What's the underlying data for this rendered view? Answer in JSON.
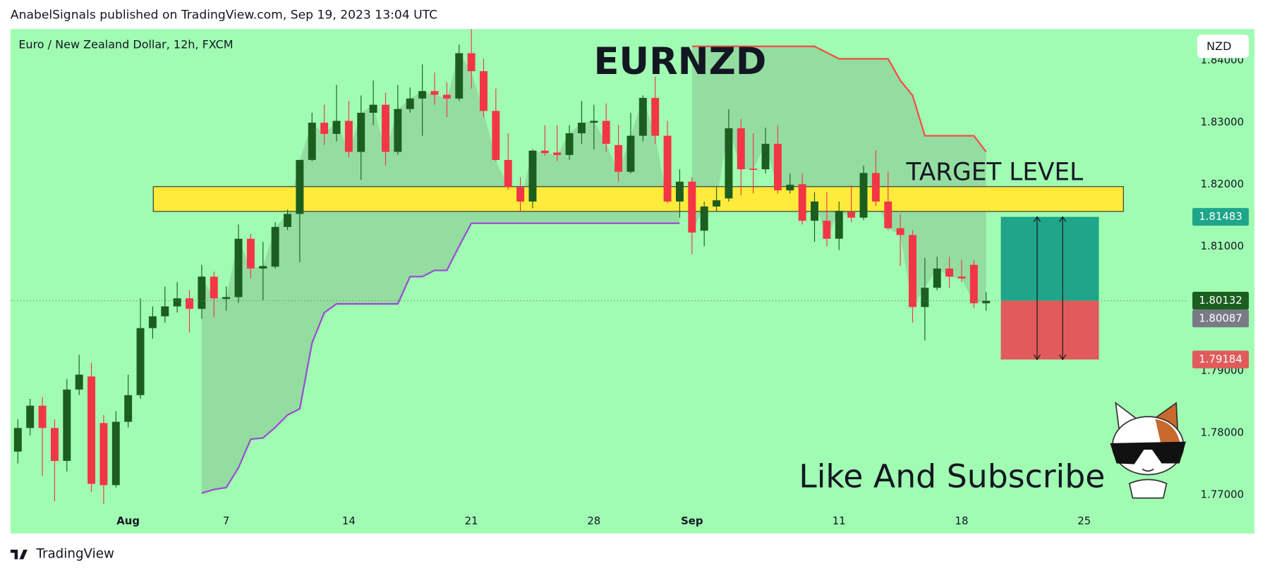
{
  "chart_data": {
    "type": "candlestick",
    "header": "AnabelSignals published on TradingView.com, Sep 19, 2023 13:04 UTC",
    "title": "EURNZD",
    "subtitle": "Euro / New Zealand Dollar, 12h, FXCM",
    "currency": "NZD",
    "brand": "TradingView",
    "annotations": [
      "TARGET LEVEL",
      "Like And Subscribe"
    ],
    "up_color": "#1b5e20",
    "down_color": "#f23645",
    "background": "#a0fcb2",
    "open": [
      1.777,
      1.7808,
      1.7844,
      1.7808,
      1.7755,
      1.787,
      1.7891,
      1.7816,
      1.7716,
      1.7818,
      1.7861,
      1.7969,
      1.7988,
      1.8004,
      1.8017,
      1.8,
      1.8052,
      1.8016,
      1.8019,
      1.8113,
      1.8065,
      1.8068,
      1.8132,
      1.8153,
      1.824,
      1.83,
      1.8282,
      1.8303,
      1.8253,
      1.8316,
      1.8329,
      1.8253,
      1.8322,
      1.8339,
      1.8351,
      1.8345,
      1.8339,
      1.8412,
      1.8383,
      1.8319,
      1.824,
      1.8196,
      1.8173,
      1.8255,
      1.8252,
      1.8248,
      1.8283,
      1.83,
      1.8303,
      1.8264,
      1.8221,
      1.8279,
      1.834,
      1.8279,
      1.8173,
      1.8205,
      1.8126,
      1.8165,
      1.8178,
      1.8291,
      1.8226,
      1.8225,
      1.8266,
      1.8191,
      1.8201,
      1.8142,
      1.8142,
      1.8113,
      1.8156,
      1.8147,
      1.8219,
      1.8173,
      1.813,
      1.8119,
      1.8003,
      1.8034,
      1.8065,
      1.8052,
      1.8071,
      1.8009
    ],
    "high": [
      1.7822,
      1.7855,
      1.7858,
      1.7822,
      1.7887,
      1.7926,
      1.7913,
      1.7829,
      1.7835,
      1.7894,
      1.8017,
      1.8004,
      1.8036,
      1.8043,
      1.803,
      1.8071,
      1.806,
      1.8036,
      1.8136,
      1.8121,
      1.8108,
      1.814,
      1.816,
      1.824,
      1.8316,
      1.8329,
      1.8361,
      1.8335,
      1.8344,
      1.8368,
      1.8348,
      1.8361,
      1.8357,
      1.8394,
      1.8381,
      1.8365,
      1.8426,
      1.8451,
      1.8403,
      1.8355,
      1.8283,
      1.8212,
      1.8257,
      1.8296,
      1.8296,
      1.8296,
      1.8335,
      1.8329,
      1.8331,
      1.8296,
      1.8316,
      1.8344,
      1.8374,
      1.8303,
      1.8225,
      1.8212,
      1.8173,
      1.8196,
      1.8322,
      1.8306,
      1.8283,
      1.8292,
      1.8296,
      1.8218,
      1.8218,
      1.8188,
      1.8188,
      1.8173,
      1.8199,
      1.8231,
      1.8256,
      1.8221,
      1.8153,
      1.8127,
      1.8082,
      1.8084,
      1.8084,
      1.8079,
      1.8079,
      1.8027
    ],
    "low": [
      1.7751,
      1.7796,
      1.7731,
      1.769,
      1.7738,
      1.7861,
      1.7705,
      1.7686,
      1.7712,
      1.7809,
      1.7855,
      1.7952,
      1.7978,
      1.7994,
      1.7962,
      1.7984,
      1.7987,
      1.7997,
      1.801,
      1.8049,
      1.8014,
      1.8065,
      1.8127,
      1.8075,
      1.8238,
      1.8264,
      1.827,
      1.8244,
      1.8208,
      1.8296,
      1.8231,
      1.8248,
      1.8316,
      1.8279,
      1.8329,
      1.8309,
      1.8335,
      1.8355,
      1.8309,
      1.8238,
      1.8192,
      1.8157,
      1.8162,
      1.8247,
      1.8238,
      1.824,
      1.8266,
      1.8257,
      1.8253,
      1.8205,
      1.8218,
      1.827,
      1.8266,
      1.817,
      1.8147,
      1.8088,
      1.8101,
      1.8157,
      1.8173,
      1.8183,
      1.8186,
      1.8218,
      1.8186,
      1.8186,
      1.8136,
      1.8108,
      1.8101,
      1.8095,
      1.814,
      1.8143,
      1.8166,
      1.8127,
      1.8069,
      1.7978,
      1.7949,
      1.803,
      1.8034,
      1.8043,
      1.8001,
      1.7997
    ],
    "close": [
      1.7808,
      1.7844,
      1.7808,
      1.7755,
      1.787,
      1.7894,
      1.7718,
      1.7716,
      1.7818,
      1.7861,
      1.7969,
      1.7988,
      1.8004,
      1.8017,
      1.8,
      1.8052,
      1.8017,
      1.8019,
      1.8113,
      1.8065,
      1.8069,
      1.8132,
      1.8153,
      1.824,
      1.83,
      1.8282,
      1.8303,
      1.8253,
      1.8316,
      1.8329,
      1.8253,
      1.8322,
      1.8339,
      1.8351,
      1.8345,
      1.8339,
      1.8412,
      1.8383,
      1.8319,
      1.824,
      1.8196,
      1.8173,
      1.8255,
      1.8251,
      1.8248,
      1.8283,
      1.83,
      1.8303,
      1.8266,
      1.8221,
      1.8279,
      1.834,
      1.8279,
      1.8173,
      1.8205,
      1.8123,
      1.8165,
      1.8175,
      1.8291,
      1.8225,
      1.8225,
      1.8266,
      1.8191,
      1.82,
      1.8142,
      1.8173,
      1.8113,
      1.8158,
      1.8147,
      1.8219,
      1.8173,
      1.813,
      1.8119,
      1.8003,
      1.8034,
      1.8065,
      1.8052,
      1.8049,
      1.8009,
      1.8013
    ],
    "indicators": [
      {
        "color": "#9b4fd1",
        "x": [
          15,
          16,
          17,
          18,
          19,
          20,
          21,
          22,
          23,
          24,
          25,
          26,
          27,
          28,
          29,
          30,
          31,
          32,
          33,
          34,
          35,
          36,
          37,
          38,
          39,
          40,
          41,
          42,
          43,
          44,
          45,
          46,
          47,
          48,
          49,
          50,
          51,
          52,
          53,
          54
        ],
        "values": [
          1.7703,
          1.7709,
          1.7712,
          1.7744,
          1.779,
          1.7792,
          1.7809,
          1.7829,
          1.7839,
          1.7945,
          1.7994,
          1.8008,
          1.8008,
          1.8008,
          1.8008,
          1.8008,
          1.8008,
          1.8052,
          1.8052,
          1.8062,
          1.8062,
          1.8101,
          1.8138,
          1.8138,
          1.8138,
          1.8138,
          1.8138,
          1.8138,
          1.8138,
          1.8138,
          1.8138,
          1.8138,
          1.8138,
          1.8138,
          1.8138,
          1.8138,
          1.8138,
          1.8138,
          1.8138,
          1.8138
        ]
      },
      {
        "color": "#f0504a",
        "x": [
          55,
          56,
          57,
          58,
          59,
          60,
          61,
          62,
          63,
          64,
          65,
          66,
          67,
          68,
          69,
          70,
          71,
          72,
          73,
          74,
          75,
          76,
          77,
          78,
          79
        ],
        "values": [
          1.8423,
          1.8423,
          1.8423,
          1.8423,
          1.8423,
          1.8423,
          1.8423,
          1.8423,
          1.8423,
          1.8423,
          1.8423,
          1.8413,
          1.8403,
          1.8403,
          1.8403,
          1.8403,
          1.8403,
          1.8368,
          1.8344,
          1.8279,
          1.8279,
          1.8279,
          1.8279,
          1.8279,
          1.8253
        ]
      }
    ],
    "zone": {
      "x": [
        11.05,
        90.2
      ],
      "y": [
        1.8157,
        1.8197
      ],
      "color": "#ffeb3b"
    },
    "position": {
      "x": [
        80.2,
        88.2
      ],
      "target": 1.81483,
      "entry": 1.80132,
      "stop": 1.79184,
      "target_color": "#1fa58a",
      "entry_color": "#1b5e20",
      "stop_color": "#e15b5b"
    },
    "marker_price": 1.80087,
    "marker_color": "#787b86",
    "xlim": [
      -0.6,
      95.3
    ],
    "xticks": [
      {
        "value": 9,
        "label": "Aug"
      },
      {
        "value": 17,
        "label": "7"
      },
      {
        "value": 27,
        "label": "14"
      },
      {
        "value": 37,
        "label": "21"
      },
      {
        "value": 47,
        "label": "28"
      },
      {
        "value": 55,
        "label": "Sep"
      },
      {
        "value": 67,
        "label": "11"
      },
      {
        "value": 77,
        "label": "18"
      },
      {
        "value": 87,
        "label": "25"
      }
    ],
    "ylim": [
      1.7638,
      1.8451
    ],
    "yticks": [
      {
        "value": 1.77,
        "label": "1.77000"
      },
      {
        "value": 1.78,
        "label": "1.78000"
      },
      {
        "value": 1.79,
        "label": "1.79000"
      },
      {
        "value": 1.8,
        "label": "1.80000"
      },
      {
        "value": 1.81,
        "label": "1.81000"
      },
      {
        "value": 1.82,
        "label": "1.82000"
      },
      {
        "value": 1.83,
        "label": "1.83000"
      },
      {
        "value": 1.84,
        "label": "1.84000"
      }
    ]
  }
}
